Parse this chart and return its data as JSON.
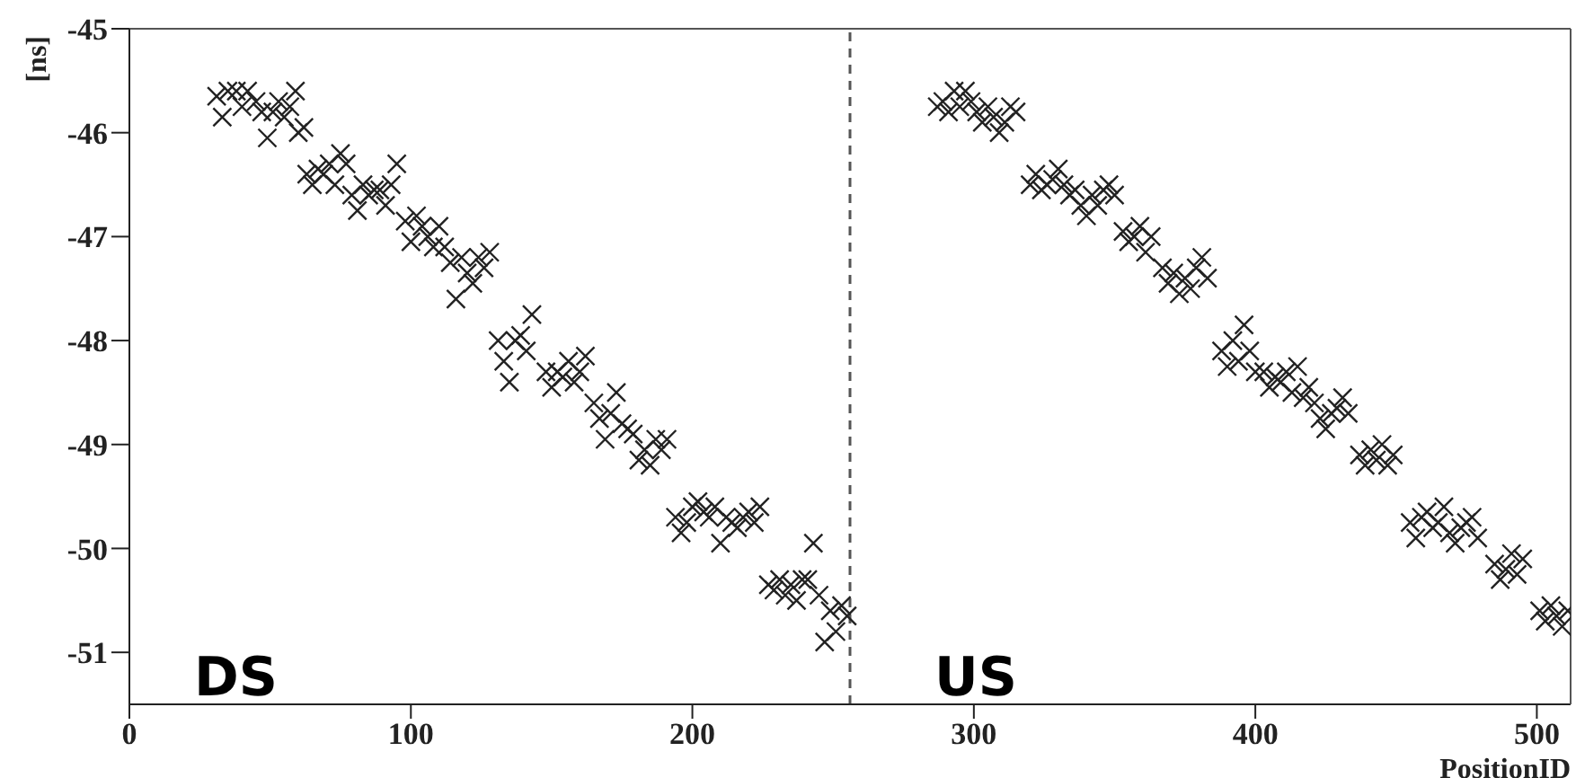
{
  "chart_data": {
    "type": "scatter",
    "xlabel": "PositionID",
    "ylabel": "[ns]",
    "annotations": [
      "DS",
      "US"
    ],
    "xlim": [
      0,
      512
    ],
    "xticks": [
      0,
      100,
      200,
      300,
      400,
      500
    ],
    "ylim": [
      -51.5,
      -45
    ],
    "yticks": [
      -51,
      -50,
      -49,
      -48,
      -47,
      -46,
      -45
    ],
    "marker": "cross",
    "ref_lines": [
      {
        "axis": "x",
        "value": 256,
        "label": null,
        "color": "#555555",
        "line_style": "dashed"
      }
    ],
    "series": [
      {
        "color": "#222222",
        "x": [
          31,
          33,
          35,
          38,
          40,
          42,
          45,
          47,
          49,
          51,
          53,
          55,
          57,
          59,
          60,
          62,
          63,
          65,
          67,
          69,
          71,
          73,
          75,
          77,
          79,
          81,
          83,
          85,
          87,
          89,
          91,
          93,
          95,
          98,
          100,
          102,
          104,
          106,
          108,
          110,
          112,
          114,
          116,
          118,
          120,
          122,
          124,
          126,
          128,
          131,
          133,
          135,
          137,
          139,
          141,
          143,
          148,
          150,
          152,
          154,
          156,
          158,
          160,
          162,
          165,
          167,
          169,
          171,
          173,
          175,
          177,
          179,
          181,
          183,
          185,
          187,
          189,
          191,
          194,
          196,
          198,
          200,
          202,
          204,
          206,
          208,
          210,
          212,
          214,
          216,
          218,
          220,
          222,
          224,
          227,
          229,
          231,
          233,
          235,
          237,
          239,
          241,
          243,
          245,
          247,
          249,
          251,
          253,
          255,
          287,
          289,
          291,
          293,
          295,
          297,
          299,
          301,
          303,
          305,
          307,
          309,
          311,
          313,
          315,
          320,
          322,
          324,
          326,
          328,
          330,
          332,
          334,
          336,
          338,
          340,
          342,
          344,
          346,
          348,
          350,
          353,
          355,
          357,
          359,
          361,
          363,
          367,
          369,
          371,
          373,
          375,
          377,
          379,
          381,
          383,
          388,
          390,
          392,
          394,
          396,
          398,
          400,
          403,
          405,
          407,
          409,
          411,
          413,
          415,
          417,
          419,
          421,
          423,
          425,
          427,
          429,
          431,
          433,
          437,
          439,
          441,
          443,
          445,
          447,
          449,
          455,
          457,
          459,
          461,
          463,
          465,
          467,
          469,
          471,
          473,
          475,
          477,
          479,
          485,
          487,
          489,
          491,
          493,
          495,
          501,
          503,
          505,
          507,
          509,
          511
        ],
        "values": [
          -45.65,
          -45.85,
          -45.6,
          -45.6,
          -45.75,
          -45.6,
          -45.7,
          -45.8,
          -46.05,
          -45.8,
          -45.7,
          -45.85,
          -45.75,
          -45.6,
          -46.0,
          -45.95,
          -46.4,
          -46.5,
          -46.35,
          -46.4,
          -46.3,
          -46.5,
          -46.2,
          -46.3,
          -46.6,
          -46.75,
          -46.5,
          -46.6,
          -46.55,
          -46.55,
          -46.7,
          -46.5,
          -46.3,
          -46.85,
          -47.05,
          -46.8,
          -46.9,
          -47.0,
          -47.1,
          -46.9,
          -47.1,
          -47.25,
          -47.6,
          -47.2,
          -47.35,
          -47.45,
          -47.2,
          -47.3,
          -47.15,
          -48.0,
          -48.2,
          -48.4,
          -48.0,
          -47.95,
          -48.1,
          -47.75,
          -48.3,
          -48.45,
          -48.3,
          -48.35,
          -48.2,
          -48.4,
          -48.3,
          -48.15,
          -48.6,
          -48.75,
          -48.95,
          -48.7,
          -48.5,
          -48.8,
          -48.85,
          -48.9,
          -49.15,
          -49.05,
          -49.2,
          -48.95,
          -49.05,
          -48.95,
          -49.7,
          -49.85,
          -49.75,
          -49.6,
          -49.55,
          -49.65,
          -49.7,
          -49.6,
          -49.95,
          -49.7,
          -49.75,
          -49.8,
          -49.7,
          -49.65,
          -49.75,
          -49.6,
          -50.35,
          -50.4,
          -50.3,
          -50.45,
          -50.35,
          -50.5,
          -50.3,
          -50.3,
          -49.95,
          -50.45,
          -50.9,
          -50.6,
          -50.8,
          -50.55,
          -50.65,
          -45.75,
          -45.7,
          -45.8,
          -45.6,
          -45.75,
          -45.6,
          -45.7,
          -45.8,
          -45.9,
          -45.75,
          -45.85,
          -46.0,
          -45.9,
          -45.75,
          -45.8,
          -46.5,
          -46.4,
          -46.55,
          -46.5,
          -46.45,
          -46.35,
          -46.5,
          -46.6,
          -46.55,
          -46.7,
          -46.8,
          -46.6,
          -46.7,
          -46.55,
          -46.5,
          -46.6,
          -46.95,
          -47.05,
          -47.0,
          -46.9,
          -47.15,
          -47.0,
          -47.3,
          -47.45,
          -47.35,
          -47.55,
          -47.4,
          -47.5,
          -47.3,
          -47.2,
          -47.4,
          -48.1,
          -48.25,
          -48.0,
          -48.2,
          -47.85,
          -48.1,
          -48.3,
          -48.3,
          -48.45,
          -48.35,
          -48.4,
          -48.3,
          -48.5,
          -48.25,
          -48.55,
          -48.45,
          -48.6,
          -48.75,
          -48.85,
          -48.7,
          -48.65,
          -48.55,
          -48.7,
          -49.1,
          -49.2,
          -49.05,
          -49.15,
          -49.0,
          -49.2,
          -49.1,
          -49.75,
          -49.9,
          -49.7,
          -49.65,
          -49.8,
          -49.75,
          -49.6,
          -49.85,
          -49.95,
          -49.8,
          -49.75,
          -49.7,
          -49.9,
          -50.15,
          -50.3,
          -50.2,
          -50.05,
          -50.25,
          -50.1,
          -50.6,
          -50.7,
          -50.55,
          -50.65,
          -50.75,
          -50.6
        ]
      }
    ]
  }
}
